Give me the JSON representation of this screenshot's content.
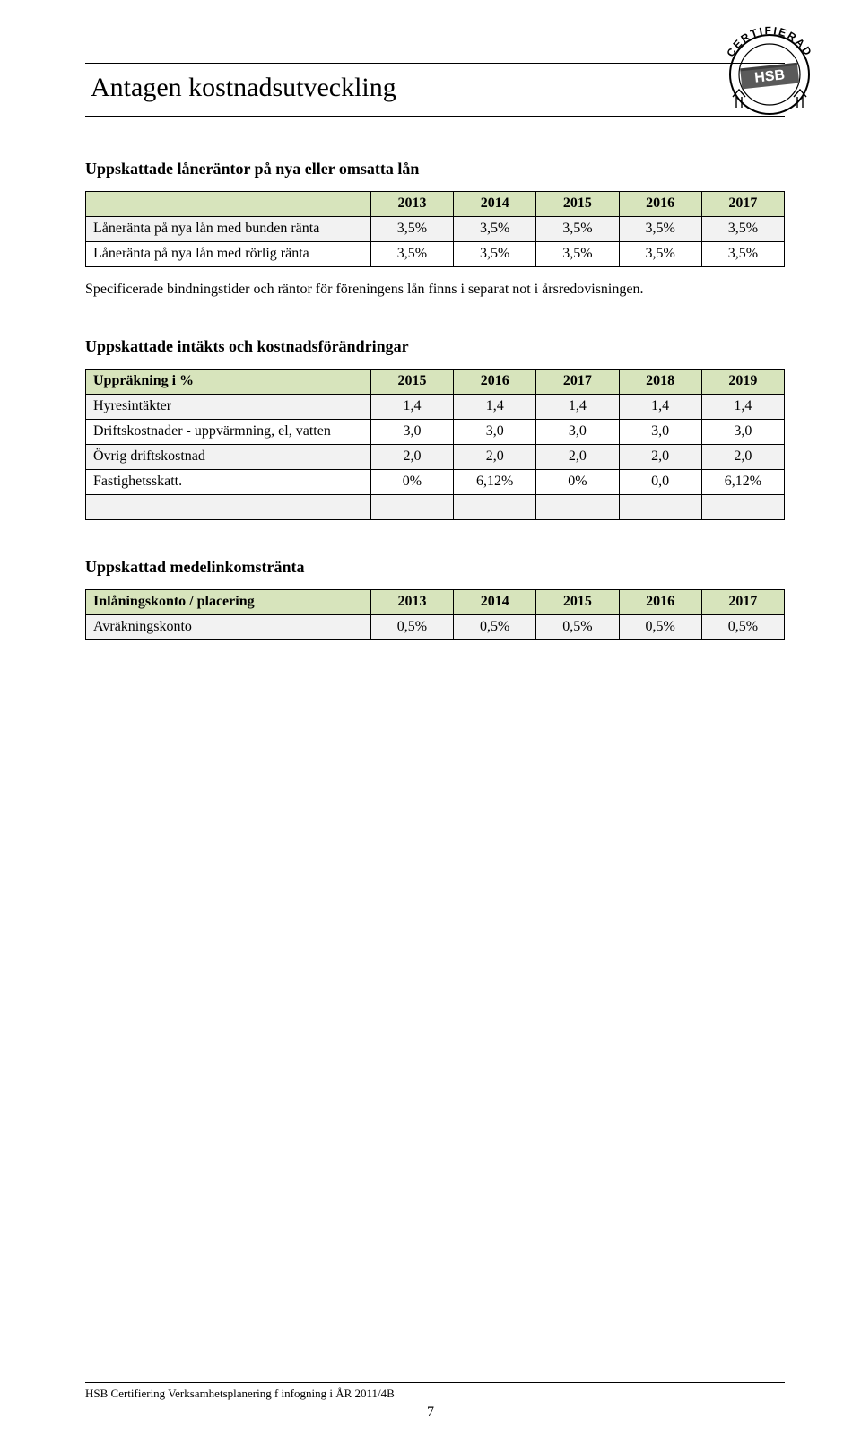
{
  "page": {
    "title": "Antagen kostnadsutveckling",
    "footer": "HSB Certifiering Verksamhetsplanering f infogning i ÅR 2011/4B",
    "page_number": "7"
  },
  "stamp": {
    "arc_text": "CERTIFIERAD",
    "label": "HSB",
    "colors": {
      "fill": "#5a5a5a",
      "ring": "#000000"
    }
  },
  "section1": {
    "title": "Uppskattade låneräntor på nya eller omsatta lån",
    "body_text": "Specificerade bindningstider och räntor för föreningens lån finns i separat not i årsredovisningen.",
    "table": {
      "header_bg": "#d7e4bc",
      "alt_row_bg": "#f2f2f2",
      "columns": [
        "",
        "2013",
        "2014",
        "2015",
        "2016",
        "2017"
      ],
      "col_widths_pct": [
        40.8,
        11.84,
        11.84,
        11.84,
        11.84,
        11.84
      ],
      "rows": [
        {
          "label": "Låneränta på nya lån med bunden ränta",
          "values": [
            "3,5%",
            "3,5%",
            "3,5%",
            "3,5%",
            "3,5%"
          ]
        },
        {
          "label": "Låneränta på nya lån med rörlig ränta",
          "values": [
            "3,5%",
            "3,5%",
            "3,5%",
            "3,5%",
            "3,5%"
          ]
        }
      ]
    }
  },
  "section2": {
    "title": "Uppskattade intäkts och kostnadsförändringar",
    "table": {
      "header_bg": "#d7e4bc",
      "alt_row_bg": "#f2f2f2",
      "columns": [
        "Uppräkning i %",
        "2015",
        "2016",
        "2017",
        "2018",
        "2019"
      ],
      "col_widths_pct": [
        40.8,
        11.84,
        11.84,
        11.84,
        11.84,
        11.84
      ],
      "rows": [
        {
          "label": "Hyresintäkter",
          "values": [
            "1,4",
            "1,4",
            "1,4",
            "1,4",
            "1,4"
          ]
        },
        {
          "label": "Driftskostnader - uppvärmning, el, vatten",
          "values": [
            "3,0",
            "3,0",
            "3,0",
            "3,0",
            "3,0"
          ]
        },
        {
          "label": "Övrig driftskostnad",
          "values": [
            "2,0",
            "2,0",
            "2,0",
            "2,0",
            "2,0"
          ]
        },
        {
          "label": "Fastighetsskatt.",
          "values": [
            "0%",
            "6,12%",
            "0%",
            "0,0",
            "6,12%"
          ]
        },
        {
          "label": "",
          "values": [
            "",
            "",
            "",
            "",
            ""
          ]
        }
      ]
    }
  },
  "section3": {
    "title": "Uppskattad medelinkomstränta",
    "table": {
      "header_bg": "#d7e4bc",
      "alt_row_bg": "#f2f2f2",
      "columns": [
        "Inlåningskonto / placering",
        "2013",
        "2014",
        "2015",
        "2016",
        "2017"
      ],
      "col_widths_pct": [
        40.8,
        11.84,
        11.84,
        11.84,
        11.84,
        11.84
      ],
      "rows": [
        {
          "label": "Avräkningskonto",
          "values": [
            "0,5%",
            "0,5%",
            "0,5%",
            "0,5%",
            "0,5%"
          ]
        }
      ]
    }
  }
}
